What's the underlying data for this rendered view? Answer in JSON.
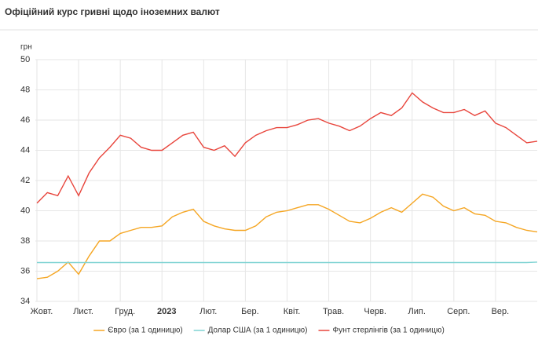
{
  "chart_data": {
    "type": "line",
    "title": "Офіційний курс гривні щодо іноземних валют",
    "y_label": "грн",
    "categories": [
      "Жовт.",
      null,
      null,
      null,
      "Лист.",
      null,
      null,
      null,
      "Груд.",
      null,
      null,
      null,
      "2023",
      null,
      null,
      null,
      "Лют.",
      null,
      null,
      null,
      "Бер.",
      null,
      null,
      null,
      "Квіт.",
      null,
      null,
      null,
      "Трав.",
      null,
      null,
      null,
      "Черв.",
      null,
      null,
      null,
      "Лип.",
      null,
      null,
      null,
      "Серп.",
      null,
      null,
      null,
      "Вер.",
      null,
      null,
      null,
      null
    ],
    "series": [
      {
        "name": "Євро (за 1 одиницю)",
        "color": "#f5a623",
        "values": [
          35.5,
          35.6,
          36.0,
          36.6,
          35.8,
          37.0,
          38.0,
          38.0,
          38.5,
          38.7,
          38.9,
          38.9,
          39.0,
          39.6,
          39.9,
          40.1,
          39.3,
          39.0,
          38.8,
          38.7,
          38.7,
          39.0,
          39.6,
          39.9,
          40.0,
          40.2,
          40.4,
          40.4,
          40.1,
          39.7,
          39.3,
          39.2,
          39.5,
          39.9,
          40.2,
          39.9,
          40.5,
          41.1,
          40.9,
          40.3,
          40.0,
          40.2,
          39.8,
          39.7,
          39.3,
          39.2,
          38.9,
          38.7,
          38.6
        ]
      },
      {
        "name": "Долар США (за 1 одиницю)",
        "color": "#7fd3d3",
        "values": [
          36.57,
          36.57,
          36.57,
          36.57,
          36.57,
          36.57,
          36.57,
          36.57,
          36.57,
          36.57,
          36.57,
          36.57,
          36.57,
          36.57,
          36.57,
          36.57,
          36.57,
          36.57,
          36.57,
          36.57,
          36.57,
          36.57,
          36.57,
          36.57,
          36.57,
          36.57,
          36.57,
          36.57,
          36.57,
          36.57,
          36.57,
          36.57,
          36.57,
          36.57,
          36.57,
          36.57,
          36.57,
          36.57,
          36.57,
          36.57,
          36.57,
          36.57,
          36.57,
          36.57,
          36.57,
          36.57,
          36.57,
          36.57,
          36.6
        ]
      },
      {
        "name": "Фунт стерлінгів (за 1 одиницю)",
        "color": "#e8453c",
        "values": [
          40.5,
          41.2,
          41.0,
          42.3,
          41.0,
          42.5,
          43.5,
          44.2,
          45.0,
          44.8,
          44.2,
          44.0,
          44.0,
          44.5,
          45.0,
          45.2,
          44.2,
          44.0,
          44.3,
          43.6,
          44.5,
          45.0,
          45.3,
          45.5,
          45.5,
          45.7,
          46.0,
          46.1,
          45.8,
          45.6,
          45.3,
          45.6,
          46.1,
          46.5,
          46.3,
          46.8,
          47.8,
          47.2,
          46.8,
          46.5,
          46.5,
          46.7,
          46.3,
          46.6,
          45.8,
          45.5,
          45.0,
          44.5,
          44.6
        ]
      }
    ],
    "ylim": [
      34,
      50
    ],
    "yticks": [
      34,
      36,
      38,
      40,
      42,
      44,
      46,
      48,
      50
    ],
    "grid": true,
    "legend": "bottom"
  }
}
